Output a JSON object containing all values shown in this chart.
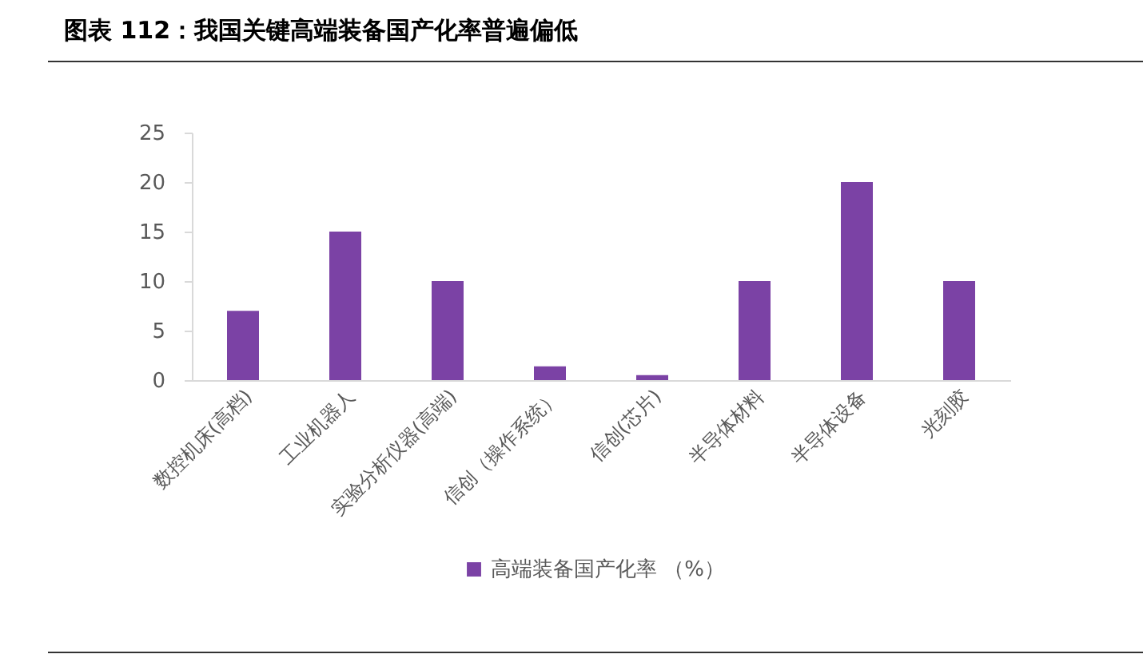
{
  "chart_data": {
    "type": "bar",
    "title": "图表 112：我国关键高端装备国产化率普遍偏低",
    "categories": [
      "数控机床(高档)",
      "工业机器人",
      "实验分析仪器(高端)",
      "信创（操作系统）",
      "信创(芯片)",
      "半导体材料",
      "半导体设备",
      "光刻胶"
    ],
    "series": [
      {
        "name": "高端装备国产化率 （%）",
        "color": "#7b42a5",
        "values": [
          7,
          15,
          10,
          1.4,
          0.5,
          10,
          20,
          10
        ]
      }
    ],
    "ylim": [
      0,
      25
    ],
    "yticks": [
      0,
      5,
      10,
      15,
      20,
      25
    ],
    "grid": false,
    "legend": "bottom"
  }
}
